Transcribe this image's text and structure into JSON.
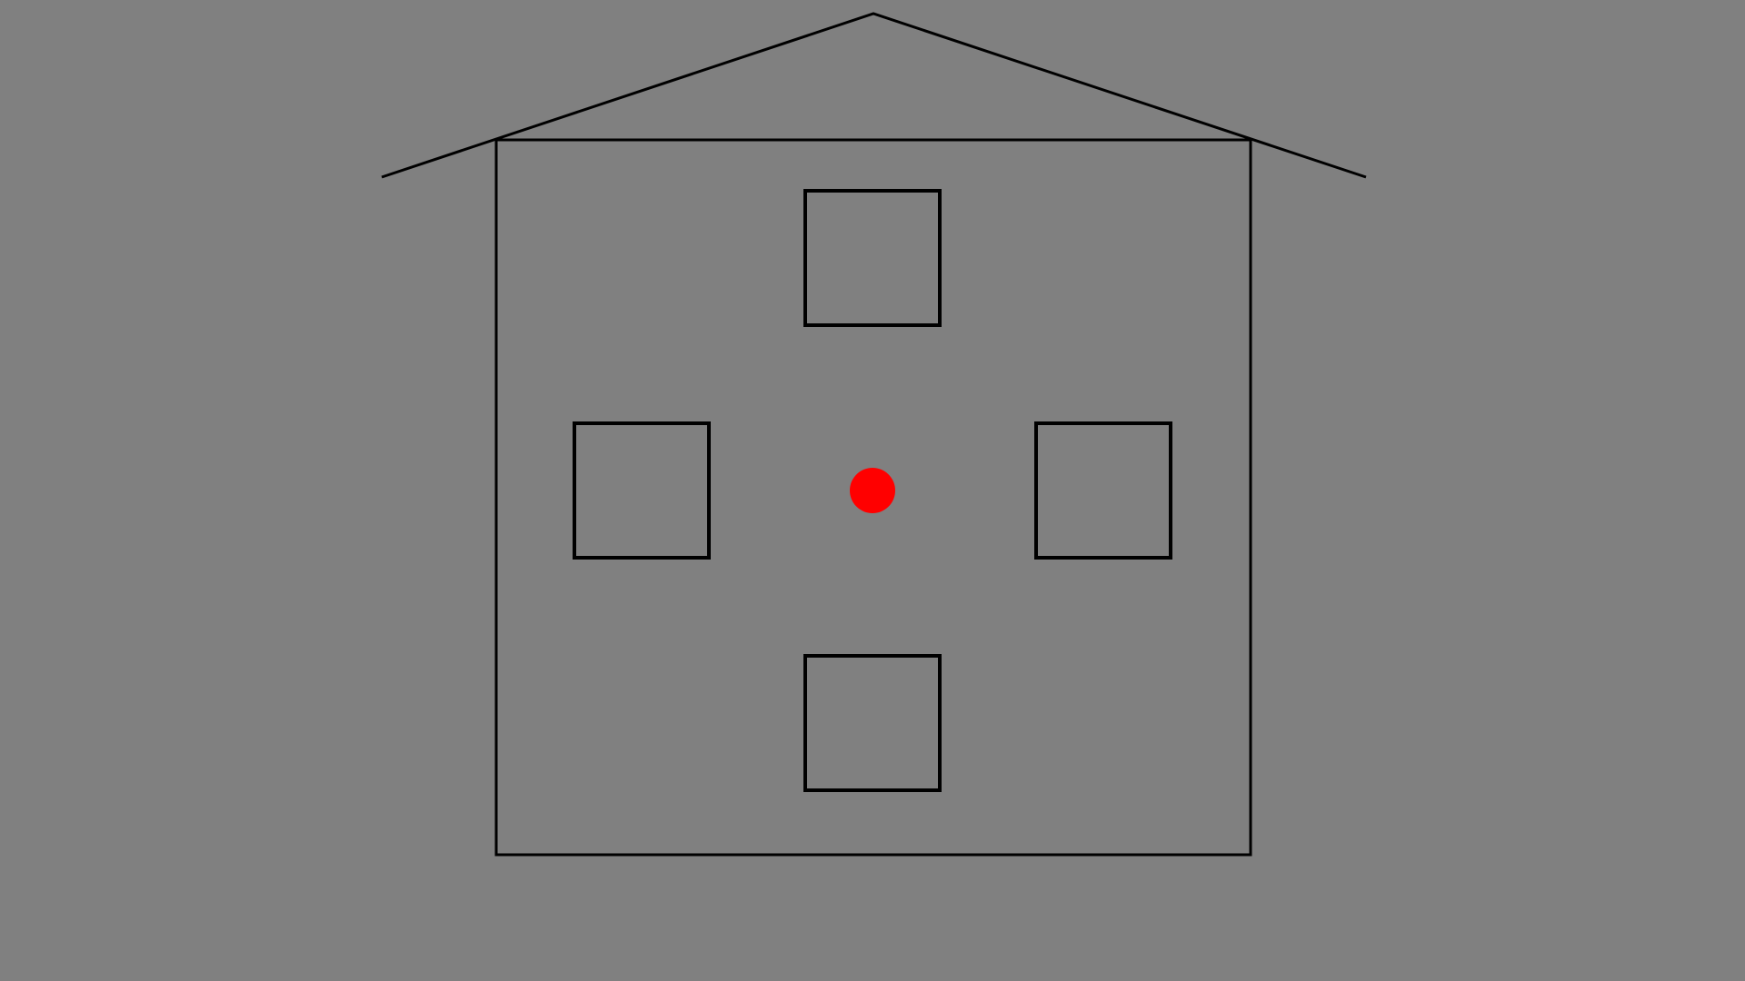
{
  "colors": {
    "background": "#808080",
    "outline": "#000000",
    "center_dot": "#ff0000"
  },
  "scene": {
    "house": {
      "roof_icon": "roof-outline",
      "body_icon": "house-body-outline",
      "windows": [
        {
          "name": "window-top"
        },
        {
          "name": "window-left"
        },
        {
          "name": "window-right"
        },
        {
          "name": "window-bottom"
        }
      ],
      "center_marker": "red-dot"
    }
  }
}
